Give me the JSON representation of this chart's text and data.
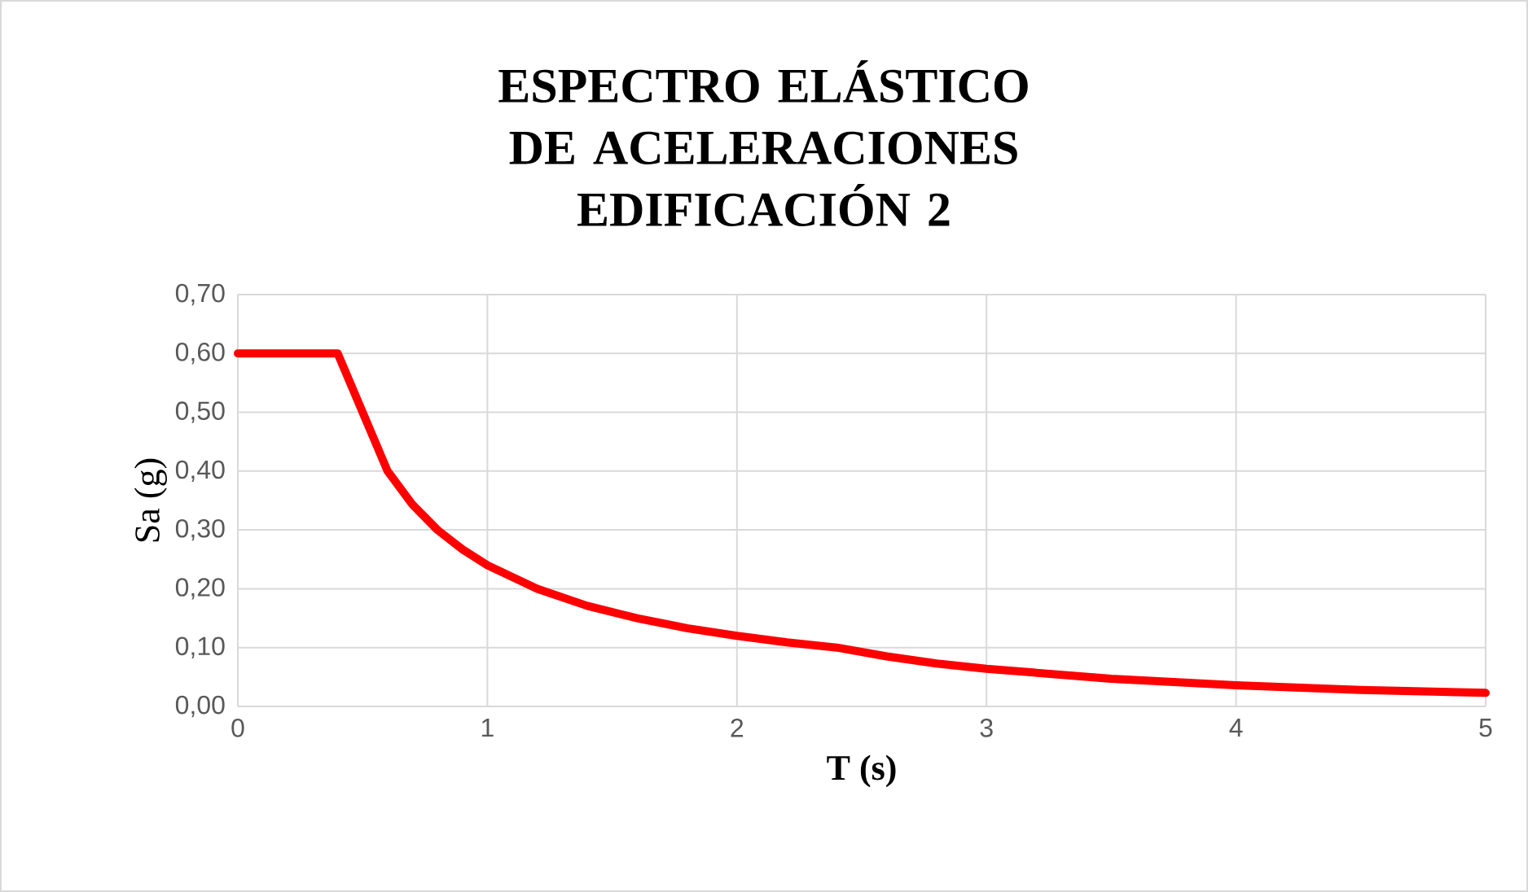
{
  "chart_data": {
    "type": "line",
    "title": "ESPECTRO ELÁSTICO DE ACELERACIONES EDIFICACIÓN 2",
    "xlabel": "T (s)",
    "ylabel": "Sa (g)",
    "x": [
      0,
      0.4,
      0.6,
      0.7,
      0.8,
      0.9,
      1.0,
      1.2,
      1.4,
      1.6,
      1.8,
      2.0,
      2.2,
      2.4,
      2.6,
      2.8,
      3.0,
      3.5,
      4.0,
      4.5,
      5.0
    ],
    "series": [
      {
        "color": "#ff0000",
        "values": [
          0.6,
          0.6,
          0.4,
          0.343,
          0.3,
          0.267,
          0.24,
          0.2,
          0.171,
          0.15,
          0.133,
          0.12,
          0.109,
          0.1,
          0.085,
          0.073,
          0.064,
          0.047,
          0.036,
          0.028,
          0.023
        ]
      }
    ],
    "xlim": [
      0,
      5
    ],
    "ylim": [
      0,
      0.7
    ],
    "xticks": [
      0,
      1,
      2,
      3,
      4,
      5
    ],
    "yticks": [
      {
        "value": 0,
        "label": "0,00"
      },
      {
        "value": 0.1,
        "label": "0,10"
      },
      {
        "value": 0.2,
        "label": "0,20"
      },
      {
        "value": 0.3,
        "label": "0,30"
      },
      {
        "value": 0.4,
        "label": "0,40"
      },
      {
        "value": 0.5,
        "label": "0,50"
      },
      {
        "value": 0.6,
        "label": "0,60"
      },
      {
        "value": 0.7,
        "label": "0,70"
      }
    ],
    "grid": true
  }
}
